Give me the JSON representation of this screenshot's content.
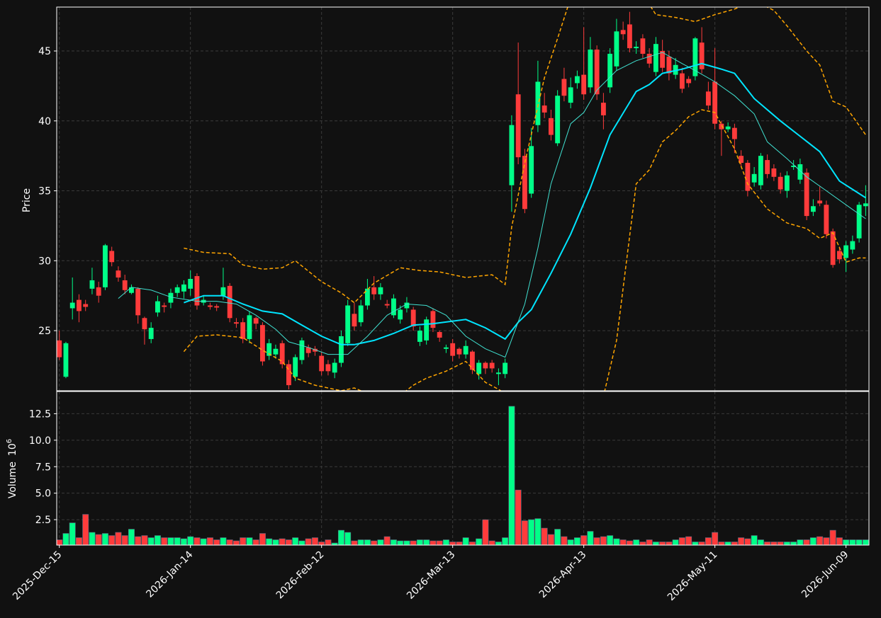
{
  "chart_data": {
    "type": "candlestick",
    "ylabel": "Price",
    "volume_ylabel": "Volume",
    "volume_scale_base": "10",
    "volume_scale_exp": "6",
    "up_color": "#00ff88",
    "down_color": "#ff3b3b",
    "grid": true,
    "categories": [
      "2025-Dec-15",
      null,
      null,
      null,
      null,
      null,
      null,
      null,
      null,
      null,
      null,
      null,
      null,
      null,
      null,
      null,
      null,
      null,
      null,
      null,
      "2026-Jan-14",
      null,
      null,
      null,
      null,
      null,
      null,
      null,
      null,
      null,
      null,
      null,
      null,
      null,
      null,
      null,
      null,
      null,
      null,
      null,
      "2026-Feb-12",
      null,
      null,
      null,
      null,
      null,
      null,
      null,
      null,
      null,
      null,
      null,
      null,
      null,
      null,
      null,
      null,
      null,
      null,
      null,
      "2026-Mar-13",
      null,
      null,
      null,
      null,
      null,
      null,
      null,
      null,
      null,
      null,
      null,
      null,
      null,
      null,
      null,
      null,
      null,
      null,
      null,
      "2026-Apr-13",
      null,
      null,
      null,
      null,
      null,
      null,
      null,
      null,
      null,
      null,
      null,
      null,
      null,
      null,
      null,
      null,
      null,
      null,
      null,
      "2026-May-11",
      null,
      null,
      null,
      null,
      null,
      null,
      null,
      null,
      null,
      null,
      null,
      null,
      null,
      null,
      null,
      null,
      null,
      null,
      null,
      "2026-Jun-09",
      null,
      null,
      null
    ],
    "xlim": [
      -0.4,
      123.5
    ],
    "open": [
      24.3,
      21.7,
      26.6,
      27.2,
      26.9,
      28.0,
      28.1,
      28.1,
      30.7,
      29.3,
      28.6,
      27.7,
      28.0,
      25.9,
      24.4,
      26.3,
      26.8,
      27.0,
      27.7,
      27.8,
      28.0,
      28.9,
      27.0,
      26.8,
      26.75,
      27.5,
      28.2,
      25.6,
      25.6,
      24.4,
      25.9,
      25.4,
      23.2,
      23.3,
      24.1,
      22.6,
      21.7,
      22.9,
      23.8,
      23.7,
      23.2,
      22.6,
      22.0,
      22.7,
      24.1,
      26.2,
      25.6,
      26.8,
      28.1,
      27.6,
      26.9,
      26.1,
      25.8,
      26.6,
      26.5,
      24.2,
      24.3,
      26.4,
      24.9,
      23.7,
      24.1,
      23.7,
      23.3,
      23.5,
      21.9,
      22.7,
      22.7,
      21.9,
      21.9,
      35.4,
      41.9,
      37.5,
      34.8,
      39.7,
      41.1,
      40.2,
      38.4,
      43.0,
      41.3,
      42.7,
      43.3,
      42.4,
      45.1,
      41.3,
      42.4,
      43.9,
      46.5,
      46.9,
      45.2,
      45.9,
      44.8,
      43.5,
      45.0,
      44.6,
      43.3,
      43.4,
      43.0,
      43.2,
      45.6,
      42.1,
      42.8,
      39.8,
      39.4,
      39.5,
      37.5,
      37.0,
      35.6,
      35.4,
      37.2,
      36.6,
      36.0,
      35.0,
      36.7,
      35.8,
      36.3,
      33.5,
      34.3,
      34.0,
      32.1,
      30.7,
      30.2,
      30.8,
      31.6,
      33.9
    ],
    "high": [
      25.0,
      24.2,
      28.8,
      27.6,
      27.2,
      29.5,
      28.5,
      31.2,
      31.0,
      29.6,
      29.0,
      28.3,
      28.1,
      26.0,
      25.6,
      27.5,
      27.0,
      28.0,
      28.3,
      28.6,
      29.3,
      29.1,
      27.5,
      27.0,
      26.9,
      29.5,
      28.4,
      25.9,
      25.9,
      26.4,
      26.0,
      25.6,
      24.4,
      24.0,
      24.3,
      22.9,
      23.3,
      24.5,
      24.0,
      23.9,
      23.5,
      22.9,
      23.0,
      25.0,
      27.2,
      27.0,
      27.2,
      28.7,
      28.9,
      28.4,
      27.2,
      27.6,
      26.8,
      27.4,
      26.7,
      25.3,
      26.0,
      26.6,
      25.0,
      24.0,
      24.4,
      23.8,
      24.3,
      23.6,
      22.9,
      22.8,
      22.9,
      22.3,
      23.0,
      40.4,
      45.6,
      38.0,
      39.5,
      44.3,
      42.0,
      40.8,
      42.2,
      43.8,
      43.1,
      43.6,
      46.7,
      46.0,
      45.4,
      42.0,
      45.2,
      47.3,
      47.1,
      47.8,
      45.7,
      46.2,
      45.2,
      46.0,
      45.8,
      45.0,
      44.5,
      43.8,
      43.2,
      46.0,
      46.7,
      42.8,
      45.2,
      40.0,
      39.9,
      39.8,
      37.9,
      37.2,
      36.7,
      37.7,
      37.6,
      36.9,
      36.3,
      36.4,
      37.2,
      37.3,
      36.6,
      34.4,
      35.3,
      34.3,
      32.3,
      31.0,
      31.4,
      31.8,
      34.2,
      35.4
    ],
    "low": [
      22.9,
      21.6,
      25.8,
      25.6,
      26.4,
      27.6,
      27.0,
      27.9,
      29.6,
      28.5,
      27.6,
      27.6,
      25.5,
      24.0,
      24.1,
      26.0,
      26.3,
      26.6,
      27.4,
      27.3,
      27.5,
      26.5,
      26.8,
      26.5,
      26.4,
      27.2,
      25.6,
      25.2,
      24.1,
      24.1,
      25.1,
      22.5,
      22.9,
      23.0,
      22.3,
      20.8,
      21.4,
      22.6,
      23.1,
      23.2,
      21.8,
      21.8,
      21.6,
      22.4,
      23.9,
      25.0,
      25.3,
      26.5,
      27.2,
      27.2,
      26.6,
      25.9,
      25.5,
      26.3,
      25.0,
      23.9,
      24.0,
      24.9,
      24.2,
      23.4,
      22.8,
      23.0,
      23.0,
      21.9,
      21.5,
      21.9,
      22.0,
      21.1,
      21.6,
      33.5,
      36.9,
      33.4,
      34.5,
      39.2,
      40.2,
      38.6,
      38.2,
      41.4,
      40.9,
      42.3,
      41.5,
      42.0,
      41.5,
      39.4,
      42.0,
      43.6,
      45.8,
      44.9,
      44.8,
      44.5,
      43.8,
      43.2,
      43.5,
      42.9,
      43.0,
      42.0,
      42.4,
      42.9,
      43.4,
      40.8,
      39.4,
      37.5,
      39.2,
      37.7,
      36.7,
      34.6,
      35.3,
      35.1,
      35.9,
      35.7,
      34.8,
      34.5,
      36.5,
      35.5,
      32.9,
      33.2,
      33.9,
      31.6,
      29.5,
      29.8,
      29.2,
      30.5,
      31.3,
      33.2
    ],
    "close": [
      23.1,
      24.1,
      27.0,
      26.4,
      26.7,
      28.6,
      27.5,
      31.1,
      29.9,
      28.8,
      27.9,
      28.1,
      26.1,
      25.1,
      25.2,
      27.1,
      26.7,
      27.7,
      28.1,
      28.3,
      28.7,
      26.8,
      27.2,
      26.7,
      26.65,
      28.1,
      25.9,
      25.5,
      24.4,
      26.1,
      25.5,
      22.8,
      24.1,
      23.7,
      22.6,
      21.1,
      23.1,
      24.3,
      23.4,
      23.5,
      22.1,
      22.1,
      22.7,
      24.6,
      26.8,
      25.3,
      26.8,
      28.0,
      27.6,
      28.1,
      26.8,
      27.3,
      26.5,
      27.0,
      25.3,
      25.0,
      25.8,
      25.2,
      24.5,
      23.8,
      23.2,
      23.3,
      23.9,
      22.2,
      22.7,
      22.3,
      22.3,
      22.0,
      22.7,
      39.7,
      37.4,
      33.7,
      38.2,
      42.8,
      40.6,
      39.0,
      41.8,
      41.8,
      42.4,
      43.2,
      41.9,
      45.1,
      41.9,
      40.4,
      44.8,
      46.4,
      46.2,
      45.2,
      45.3,
      44.8,
      44.1,
      45.5,
      43.8,
      43.4,
      44.0,
      42.3,
      42.7,
      45.9,
      43.7,
      41.1,
      39.8,
      39.4,
      39.6,
      38.7,
      37.0,
      35.0,
      36.2,
      37.5,
      36.2,
      36.0,
      35.1,
      36.1,
      36.8,
      36.9,
      33.2,
      33.9,
      34.1,
      31.9,
      29.7,
      30.1,
      31.1,
      31.4,
      34.0,
      34.1
    ],
    "volume": [
      0.6,
      1.2,
      2.2,
      0.8,
      3.0,
      1.3,
      1.1,
      1.2,
      1.0,
      1.3,
      1.0,
      1.6,
      0.9,
      1.0,
      0.8,
      1.0,
      0.8,
      0.8,
      0.8,
      0.7,
      0.9,
      0.8,
      0.7,
      0.8,
      0.6,
      0.8,
      0.6,
      0.5,
      0.8,
      0.8,
      0.6,
      1.2,
      0.7,
      0.6,
      0.7,
      0.6,
      0.8,
      0.5,
      0.7,
      0.8,
      0.4,
      0.6,
      0.3,
      1.5,
      1.3,
      0.5,
      0.6,
      0.6,
      0.5,
      0.6,
      0.9,
      0.6,
      0.5,
      0.5,
      0.5,
      0.6,
      0.6,
      0.5,
      0.5,
      0.6,
      0.4,
      0.4,
      0.8,
      0.4,
      0.7,
      2.5,
      0.5,
      0.4,
      0.8,
      13.2,
      5.3,
      2.4,
      2.5,
      2.6,
      1.7,
      1.1,
      1.6,
      0.9,
      0.6,
      0.8,
      1.0,
      1.4,
      0.8,
      0.9,
      1.0,
      0.7,
      0.6,
      0.5,
      0.6,
      0.4,
      0.6,
      0.4,
      0.4,
      0.4,
      0.6,
      0.8,
      0.9,
      0.4,
      0.4,
      0.8,
      1.3,
      0.4,
      0.4,
      0.4,
      0.8,
      0.7,
      1.0,
      0.6,
      0.4,
      0.4,
      0.4,
      0.4,
      0.4,
      0.6,
      0.6,
      0.8,
      0.9,
      0.8,
      1.5,
      0.8,
      0.6,
      0.6,
      0.6,
      0.6
    ],
    "ylim": [
      20.7,
      48.14
    ],
    "yticks": [
      25,
      30,
      35,
      40,
      45
    ],
    "volume_ylim": [
      0.1,
      14.6
    ],
    "volume_yticks": [
      2.5,
      {
        "value": 5,
        "label": "5.0"
      },
      7.5,
      {
        "value": 10,
        "label": "10.0"
      },
      12.5
    ],
    "overlays": [
      {
        "color": "#00e5ff",
        "width": 2,
        "dashed": false,
        "x": [
          19,
          22,
          25,
          28,
          31,
          34,
          37,
          40,
          43,
          45,
          48,
          51,
          54,
          57,
          62,
          65,
          68,
          70,
          72,
          75,
          78,
          81,
          84,
          88,
          90,
          92,
          95,
          98,
          101,
          103,
          106,
          110,
          113,
          116,
          119,
          123
        ],
        "values": [
          27.0,
          27.5,
          27.5,
          26.9,
          26.4,
          26.2,
          25.4,
          24.6,
          24.0,
          24.0,
          24.3,
          24.8,
          25.4,
          25.5,
          25.8,
          25.2,
          24.4,
          25.6,
          26.5,
          29.1,
          31.9,
          35.2,
          39.0,
          42.1,
          42.6,
          43.4,
          43.7,
          44.1,
          43.7,
          43.4,
          41.6,
          40.0,
          38.9,
          37.8,
          35.7,
          34.5
        ]
      },
      {
        "color": "#40e0d0",
        "width": 1,
        "dashed": false,
        "x": [
          9,
          11,
          14,
          17,
          21,
          24,
          27,
          30,
          33,
          35,
          38,
          41,
          44,
          47,
          50,
          53,
          56,
          59,
          62,
          65,
          68,
          71,
          73,
          75,
          78,
          80,
          82,
          85,
          88,
          92,
          95,
          97,
          100,
          103,
          106,
          108,
          111,
          114,
          117,
          120,
          123
        ],
        "values": [
          27.3,
          28.1,
          27.9,
          27.4,
          27.1,
          27.1,
          26.9,
          26.1,
          25.1,
          24.2,
          23.8,
          23.3,
          23.3,
          24.6,
          26.1,
          26.9,
          26.8,
          26.1,
          24.6,
          23.7,
          23.1,
          26.9,
          30.9,
          35.5,
          39.8,
          40.6,
          42.2,
          43.6,
          44.3,
          44.9,
          44.1,
          43.6,
          42.8,
          41.8,
          40.5,
          38.5,
          37.3,
          36.0,
          35.0,
          34.0,
          33.0
        ]
      },
      {
        "color": "#ffa500",
        "width": 1.5,
        "dashed": true,
        "x": [
          19,
          22,
          26,
          28,
          31,
          34,
          36,
          40,
          43,
          45,
          48,
          52,
          55,
          58,
          62,
          66,
          68,
          69,
          71,
          74,
          76,
          78,
          81,
          85,
          88,
          91,
          94,
          97,
          100,
          103,
          106,
          109,
          111,
          114,
          116,
          118,
          120,
          123
        ],
        "values": [
          30.9,
          30.6,
          30.5,
          29.7,
          29.4,
          29.5,
          30.0,
          28.5,
          27.7,
          27.0,
          28.4,
          29.5,
          29.3,
          29.2,
          28.8,
          29.0,
          28.3,
          32.4,
          37.0,
          43.1,
          45.9,
          48.8,
          49.8,
          50.5,
          49.8,
          47.6,
          47.4,
          47.1,
          47.6,
          48.0,
          48.6,
          47.9,
          46.8,
          45.0,
          44.0,
          41.4,
          41.0,
          39.0
        ]
      },
      {
        "color": "#ffa500",
        "width": 1.5,
        "dashed": true,
        "x": [
          19,
          21,
          24,
          26,
          28,
          31,
          34,
          36,
          39,
          43,
          45,
          47,
          51,
          54,
          56,
          59,
          62,
          65,
          67,
          68,
          72,
          78,
          83,
          85,
          88,
          90,
          92,
          94,
          96,
          98,
          100,
          103,
          105,
          108,
          111,
          114,
          116,
          118,
          120,
          122,
          123
        ],
        "values": [
          23.5,
          24.6,
          24.7,
          24.6,
          24.5,
          23.6,
          22.8,
          21.6,
          21.1,
          20.7,
          20.9,
          20.5,
          20.0,
          21.1,
          21.6,
          22.1,
          22.8,
          21.3,
          20.8,
          20.5,
          18.3,
          17.3,
          20.3,
          24.3,
          35.5,
          36.5,
          38.5,
          39.3,
          40.3,
          40.8,
          40.6,
          38.0,
          35.5,
          33.7,
          32.7,
          32.3,
          31.6,
          32.0,
          29.9,
          30.2,
          30.2
        ]
      }
    ]
  }
}
